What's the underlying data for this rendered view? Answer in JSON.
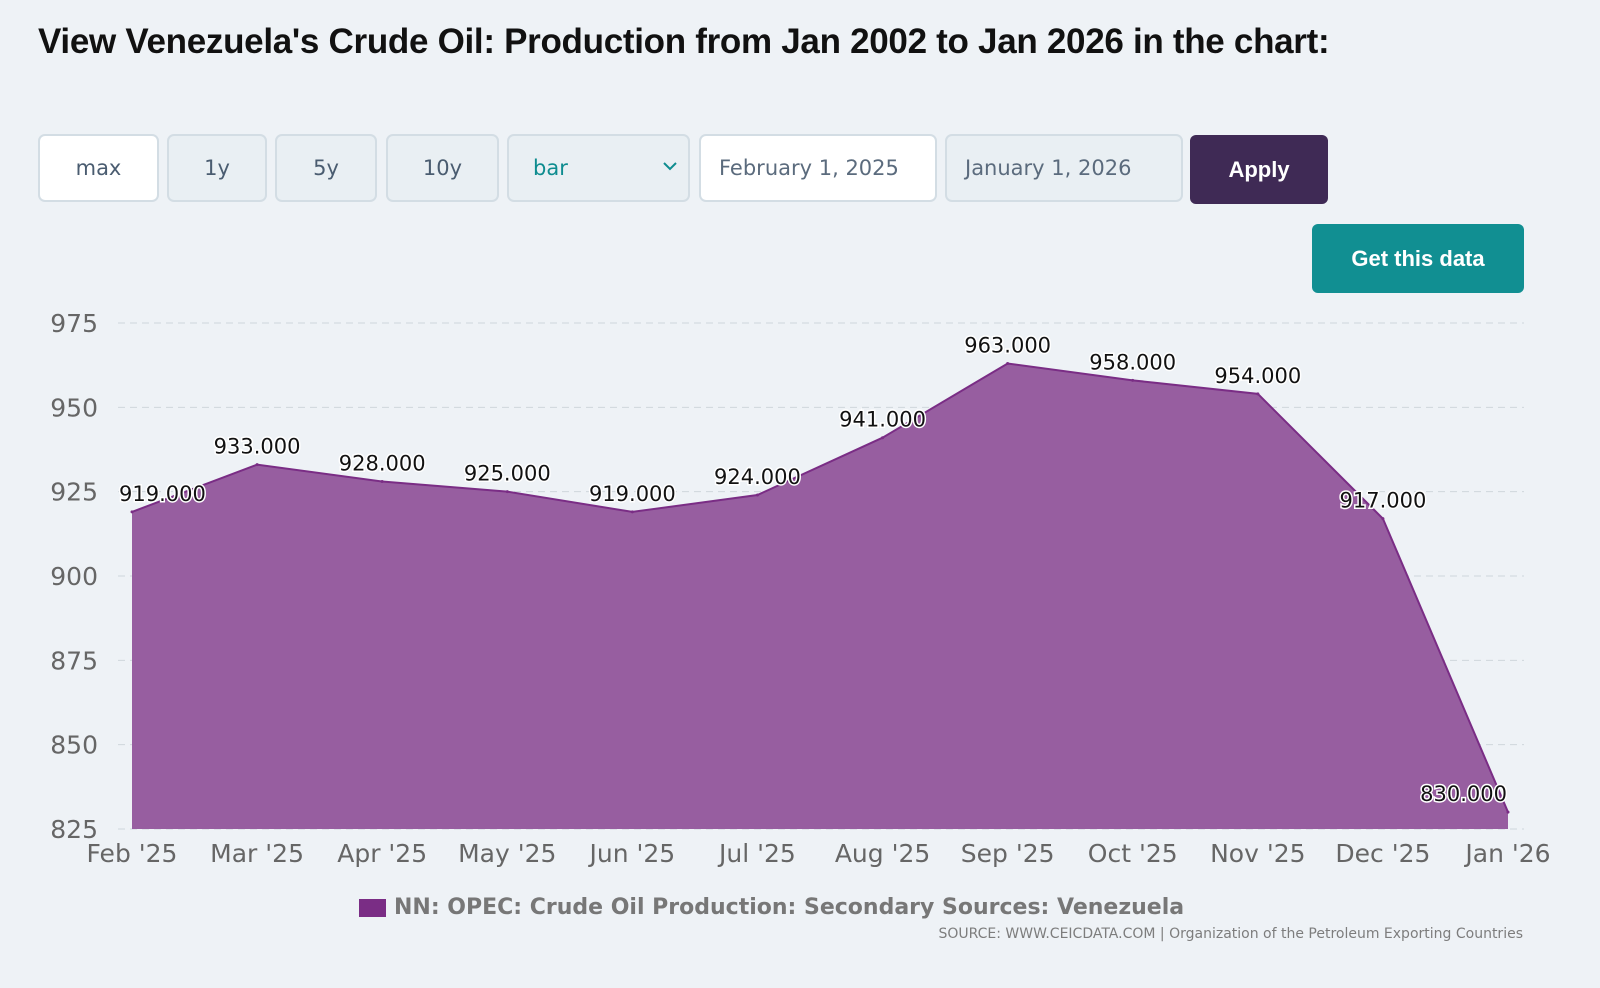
{
  "page": {
    "title": "View Venezuela's Crude Oil: Production from Jan 2002 to Jan 2026 in the chart:"
  },
  "controls": {
    "ranges": [
      "max",
      "1y",
      "5y",
      "10y"
    ],
    "active_range": "max",
    "chart_type": "bar",
    "start_date": "February 1, 2025",
    "end_date": "January 1, 2026",
    "apply_label": "Apply",
    "get_data_label": "Get this data"
  },
  "colors": {
    "area_fill": "#975ea0",
    "area_line": "#7a2d85",
    "legend_swatch": "#7a2d85",
    "apply_bg": "#3f2a55",
    "get_data_bg": "#118f92"
  },
  "chart_data": {
    "type": "area",
    "categories": [
      "Feb '25",
      "Mar '25",
      "Apr '25",
      "May '25",
      "Jun '25",
      "Jul '25",
      "Aug '25",
      "Sep '25",
      "Oct '25",
      "Nov '25",
      "Dec '25",
      "Jan '26"
    ],
    "series": [
      {
        "name": "NN: OPEC: Crude Oil Production: Secondary Sources: Venezuela",
        "values": [
          919,
          933,
          928,
          925,
          919,
          924,
          941,
          963,
          958,
          954,
          917,
          830
        ],
        "labels": [
          "919.000",
          "933.000",
          "928.000",
          "925.000",
          "919.000",
          "924.000",
          "941.000",
          "963.000",
          "958.000",
          "954.000",
          "917.000",
          "830.000"
        ]
      }
    ],
    "ylim": [
      825,
      975
    ],
    "yticks": [
      825,
      850,
      875,
      900,
      925,
      950,
      975
    ],
    "grid": true,
    "legend": "bottom-center",
    "source": "SOURCE: WWW.CEICDATA.COM | Organization of the Petroleum Exporting Countries"
  }
}
